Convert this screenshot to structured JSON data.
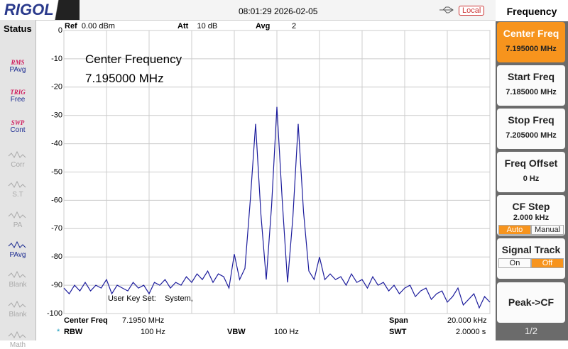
{
  "header": {
    "logo": "RIGOL",
    "datetime": "08:01:29 2026-02-05",
    "mode": "Local"
  },
  "status": {
    "title": "Status",
    "items": [
      {
        "top": "RMS",
        "bottom": "PAvg"
      },
      {
        "top": "TRIG",
        "bottom": "Free"
      },
      {
        "top": "SWP",
        "bottom": "Cont"
      },
      {
        "bottom": "Corr"
      },
      {
        "bottom": "S.T"
      },
      {
        "bottom": "PA"
      },
      {
        "bottom": "PAvg"
      },
      {
        "bottom": "Blank"
      },
      {
        "bottom": "Blank"
      },
      {
        "bottom": "Math"
      }
    ]
  },
  "settings": {
    "ref_label": "Ref",
    "ref": "0.00 dBm",
    "att_label": "Att",
    "att": "10 dB",
    "avg_label": "Avg",
    "avg": "2"
  },
  "annotation": {
    "line1": "Center Frequency",
    "line2": "7.195000 MHz",
    "user_key": "User Key Set:",
    "user_key_value": "System,"
  },
  "footer": {
    "center_label": "Center Freq",
    "center": "7.1950 MHz",
    "span_label": "Span",
    "span": "20.000 kHz",
    "rbw_marker": "*",
    "rbw_label": "RBW",
    "rbw": "100 Hz",
    "vbw_label": "VBW",
    "vbw": "100 Hz",
    "swt_label": "SWT",
    "swt": "2.0000 s"
  },
  "menu": {
    "title": "Frequency",
    "buttons": [
      {
        "label": "Center Freq",
        "value": "7.195000 MHz"
      },
      {
        "label": "Start Freq",
        "value": "7.185000 MHz"
      },
      {
        "label": "Stop Freq",
        "value": "7.205000 MHz"
      },
      {
        "label": "Freq Offset",
        "value": "0 Hz"
      },
      {
        "label": "CF Step",
        "value": "2.000 kHz",
        "options": [
          "Auto",
          "Manual"
        ]
      },
      {
        "label": "Signal Track",
        "options": [
          "On",
          "Off"
        ]
      },
      {
        "label": "Peak->CF"
      }
    ],
    "page": "1/2"
  },
  "chart_data": {
    "type": "line",
    "grid": true,
    "xlim": [
      7.185,
      7.205
    ],
    "xticks": [
      7.185,
      7.187,
      7.189,
      7.191,
      7.193,
      7.195,
      7.197,
      7.199,
      7.201,
      7.203,
      7.205
    ],
    "ylim": [
      -100,
      0
    ],
    "yticks": [
      0,
      -10,
      -20,
      -30,
      -40,
      -50,
      -60,
      -70,
      -80,
      -90,
      -100
    ],
    "x": [
      7.185,
      7.18525,
      7.1855,
      7.18575,
      7.186,
      7.18625,
      7.1865,
      7.18675,
      7.187,
      7.18725,
      7.1875,
      7.18775,
      7.188,
      7.18825,
      7.1885,
      7.18875,
      7.189,
      7.18925,
      7.1895,
      7.18975,
      7.19,
      7.19025,
      7.1905,
      7.19075,
      7.191,
      7.19125,
      7.1915,
      7.19175,
      7.192,
      7.19225,
      7.1925,
      7.19275,
      7.193,
      7.19325,
      7.1935,
      7.19375,
      7.194,
      7.19425,
      7.1945,
      7.19475,
      7.195,
      7.19525,
      7.1955,
      7.19575,
      7.196,
      7.19625,
      7.1965,
      7.19675,
      7.197,
      7.19725,
      7.1975,
      7.19775,
      7.198,
      7.19825,
      7.1985,
      7.19875,
      7.199,
      7.19925,
      7.1995,
      7.19975,
      7.2,
      7.20025,
      7.2005,
      7.20075,
      7.201,
      7.20125,
      7.2015,
      7.20175,
      7.202,
      7.20225,
      7.2025,
      7.20275,
      7.203,
      7.20325,
      7.2035,
      7.20375,
      7.204,
      7.20425,
      7.2045,
      7.20475,
      7.205
    ],
    "series": [
      {
        "color": "#1c1c9c",
        "values": [
          -91,
          -93,
          -90,
          -92,
          -89,
          -92,
          -90,
          -91,
          -88,
          -93,
          -90,
          -91,
          -92,
          -89,
          -91,
          -90,
          -93,
          -89,
          -90,
          -88,
          -91,
          -89,
          -90,
          -87,
          -89,
          -86,
          -88,
          -85,
          -89,
          -86,
          -87,
          -91,
          -79,
          -88,
          -84,
          -60,
          -33,
          -65,
          -88,
          -62,
          -27,
          -60,
          -89,
          -66,
          -33,
          -64,
          -85,
          -88,
          -80,
          -88,
          -86,
          -88,
          -87,
          -90,
          -86,
          -89,
          -88,
          -91,
          -87,
          -90,
          -89,
          -92,
          -90,
          -93,
          -91,
          -90,
          -94,
          -92,
          -91,
          -95,
          -93,
          -92,
          -96,
          -94,
          -91,
          -97,
          -95,
          -93,
          -98,
          -94,
          -96
        ]
      }
    ]
  }
}
